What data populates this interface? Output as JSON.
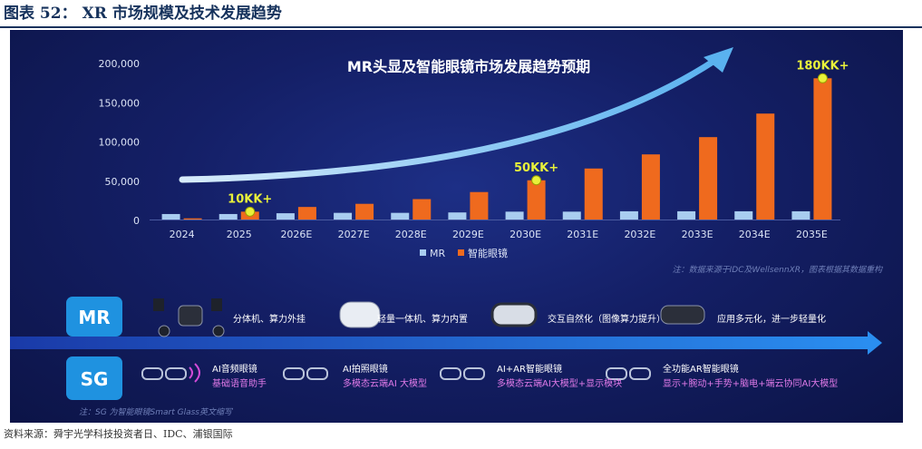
{
  "figure": {
    "label": "图表 52：",
    "title": "XR 市场规模及技术发展趋势",
    "source": "资料来源：舜宇光学科技投资者日、IDC、浦银国际"
  },
  "colors": {
    "mr": "#a9cdf0",
    "sg": "#ef6a1e",
    "arrow": "#5ab2ef",
    "callout": "#e8f13a",
    "panel_bg": "#141f66",
    "row_label": "#1f92e0"
  },
  "chart_data": {
    "type": "bar",
    "title": "MR头显及智能眼镜市场发展趋势预期",
    "categories": [
      "2024",
      "2025",
      "2026E",
      "2027E",
      "2028E",
      "2029E",
      "2030E",
      "2031E",
      "2032E",
      "2033E",
      "2034E",
      "2035E"
    ],
    "series": [
      {
        "name": "MR",
        "values": [
          7000,
          7000,
          8000,
          8500,
          8500,
          9000,
          10000,
          10000,
          10500,
          10500,
          10500,
          10500
        ]
      },
      {
        "name": "智能眼镜",
        "values": [
          1500,
          10000,
          16000,
          20000,
          26000,
          35000,
          50000,
          65000,
          83000,
          105000,
          135000,
          180000
        ]
      }
    ],
    "yticks": [
      "0",
      "50,000",
      "100,000",
      "150,000",
      "200,000"
    ],
    "ylim": [
      0,
      200000
    ],
    "legend_position": "bottom",
    "annotations": [
      {
        "text": "10KK+",
        "category": "2025"
      },
      {
        "text": "50KK+",
        "category": "2030E"
      },
      {
        "text": "180KK+",
        "category": "2035E"
      }
    ],
    "note": "注：数据来源于IDC及WellsennXR，图表根据其数据重构"
  },
  "tech": {
    "mr_label": "MR",
    "sg_label": "SG",
    "mr_items": [
      {
        "text": "分体机、算力外挂"
      },
      {
        "text": "轻量一体机、算力内置"
      },
      {
        "text": "交互自然化（图像算力提升）"
      },
      {
        "text": "应用多元化，进一步轻量化"
      }
    ],
    "sg_items": [
      {
        "title": "AI音频眼镜",
        "desc": "基础语音助手"
      },
      {
        "title": "AI拍照眼镜",
        "desc": "多模态云端AI 大模型"
      },
      {
        "title": "AI+AR智能眼镜",
        "desc": "多模态云端AI大模型+显示模块"
      },
      {
        "title": "全功能AR智能眼镜",
        "desc": "显示+腕动+手势+脑电+端云协同AI大模型"
      }
    ],
    "note": "注：SG 为智能眼镜Smart Glass英文缩写"
  }
}
